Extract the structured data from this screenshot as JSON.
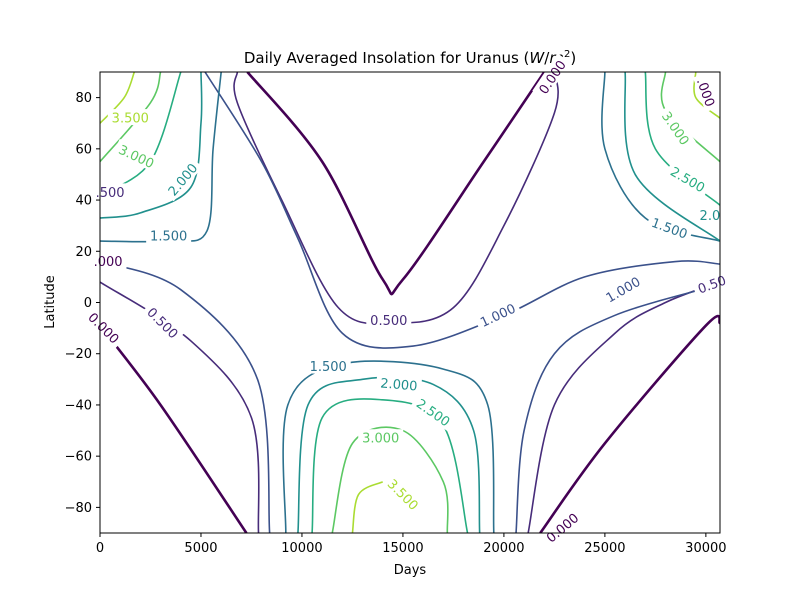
{
  "chart_data": {
    "type": "contour",
    "title": "Daily Averaged Insolation for Uranus (W/m²)",
    "title_parts": {
      "prefix": "Daily Averaged Insolation for Uranus (",
      "var": "W",
      "slash": "/",
      "var2": "m",
      "sup": "2",
      "suffix": ")"
    },
    "xlabel": "Days",
    "ylabel": "Latitude",
    "xlim": [
      0,
      30700
    ],
    "ylim": [
      -90,
      90
    ],
    "xticks": [
      0,
      5000,
      10000,
      15000,
      20000,
      25000,
      30000
    ],
    "yticks": [
      -80,
      -60,
      -40,
      -20,
      0,
      20,
      40,
      60,
      80
    ],
    "grid": false,
    "colors": {
      "0.000": "#440154",
      "0.500": "#472c7a",
      "1.000": "#3b518b",
      "1.500": "#2c718e",
      "2.000": "#21908d",
      "2.500": "#27ad81",
      "3.000": "#5cc863",
      "3.500": "#aadc32"
    },
    "contours": [
      {
        "level": "0.000",
        "points": [
          [
            7300,
            90
          ],
          [
            11000,
            55
          ],
          [
            14000,
            9
          ],
          [
            15000,
            9
          ],
          [
            19000,
            55
          ],
          [
            22000,
            90
          ]
        ]
      },
      {
        "level": "0.000",
        "points": [
          [
            0,
            -9
          ],
          [
            3000,
            -40
          ],
          [
            7250,
            -90
          ]
        ]
      },
      {
        "level": "0.000",
        "points": [
          [
            21800,
            -90
          ],
          [
            25000,
            -55
          ],
          [
            30000,
            -9
          ],
          [
            30700,
            -8
          ]
        ]
      },
      {
        "level": "0.500",
        "points": [
          [
            6800,
            90
          ],
          [
            6800,
            78
          ],
          [
            9000,
            40
          ],
          [
            11800,
            -2
          ],
          [
            14500,
            -8
          ],
          [
            17500,
            -2
          ],
          [
            20000,
            30
          ],
          [
            22500,
            74
          ],
          [
            22500,
            90
          ]
        ]
      },
      {
        "level": "0.500",
        "points": [
          [
            0,
            8
          ],
          [
            4500,
            -15
          ],
          [
            7500,
            -45
          ],
          [
            7850,
            -90
          ]
        ]
      },
      {
        "level": "0.500",
        "points": [
          [
            21200,
            -90
          ],
          [
            22500,
            -40
          ],
          [
            25500,
            -12
          ],
          [
            28000,
            0
          ],
          [
            30700,
            8
          ]
        ]
      },
      {
        "level": "1.000",
        "points": [
          [
            5200,
            90
          ],
          [
            8000,
            55
          ],
          [
            9800,
            25
          ],
          [
            12000,
            -12
          ],
          [
            15500,
            -17
          ],
          [
            20000,
            -5
          ],
          [
            24000,
            10
          ],
          [
            28500,
            16
          ],
          [
            30700,
            15
          ]
        ]
      },
      {
        "level": "1.000",
        "points": [
          [
            0,
            16
          ],
          [
            4000,
            5
          ],
          [
            7800,
            -30
          ],
          [
            8400,
            -90
          ]
        ]
      },
      {
        "level": "1.000",
        "points": [
          [
            20600,
            -90
          ],
          [
            21000,
            -50
          ],
          [
            22500,
            -20
          ],
          [
            25500,
            -5
          ],
          [
            30700,
            7
          ]
        ]
      },
      {
        "level": "1.500",
        "points": [
          [
            0,
            24
          ],
          [
            3500,
            24
          ],
          [
            5300,
            28
          ],
          [
            5600,
            60
          ],
          [
            6000,
            90
          ]
        ]
      },
      {
        "level": "1.500",
        "points": [
          [
            25000,
            90
          ],
          [
            25000,
            60
          ],
          [
            27000,
            33
          ],
          [
            30700,
            24
          ]
        ]
      },
      {
        "level": "1.500",
        "points": [
          [
            9200,
            -90
          ],
          [
            9300,
            -40
          ],
          [
            12000,
            -24
          ],
          [
            17000,
            -26
          ],
          [
            19200,
            -40
          ],
          [
            19500,
            -90
          ]
        ]
      },
      {
        "level": "2.000",
        "points": [
          [
            0,
            33
          ],
          [
            2000,
            35
          ],
          [
            4500,
            45
          ],
          [
            5000,
            70
          ],
          [
            5000,
            90
          ]
        ]
      },
      {
        "level": "2.000",
        "points": [
          [
            26000,
            90
          ],
          [
            26500,
            50
          ],
          [
            30700,
            24
          ]
        ]
      },
      {
        "level": "2.000",
        "points": [
          [
            9800,
            -90
          ],
          [
            10300,
            -40
          ],
          [
            13000,
            -30
          ],
          [
            16500,
            -32
          ],
          [
            18500,
            -50
          ],
          [
            18800,
            -90
          ]
        ]
      },
      {
        "level": "2.500",
        "points": [
          [
            0,
            42
          ],
          [
            2500,
            55
          ],
          [
            4000,
            90
          ]
        ]
      },
      {
        "level": "2.500",
        "points": [
          [
            27000,
            90
          ],
          [
            27500,
            60
          ],
          [
            30700,
            38
          ]
        ]
      },
      {
        "level": "2.500",
        "points": [
          [
            10500,
            -90
          ],
          [
            11000,
            -45
          ],
          [
            14000,
            -38
          ],
          [
            17000,
            -48
          ],
          [
            18200,
            -90
          ]
        ]
      },
      {
        "level": "3.000",
        "points": [
          [
            0,
            55
          ],
          [
            2500,
            78
          ],
          [
            3000,
            90
          ]
        ]
      },
      {
        "level": "3.000",
        "points": [
          [
            28000,
            90
          ],
          [
            28000,
            75
          ],
          [
            30700,
            55
          ]
        ]
      },
      {
        "level": "3.000",
        "points": [
          [
            11500,
            -90
          ],
          [
            12500,
            -55
          ],
          [
            15000,
            -50
          ],
          [
            17000,
            -70
          ],
          [
            17200,
            -90
          ]
        ]
      },
      {
        "level": "3.500",
        "points": [
          [
            0,
            70
          ],
          [
            1200,
            80
          ],
          [
            1700,
            90
          ]
        ]
      },
      {
        "level": "3.500",
        "points": [
          [
            29500,
            90
          ],
          [
            29500,
            80
          ],
          [
            30700,
            72
          ]
        ]
      },
      {
        "level": "3.500",
        "points": [
          [
            12500,
            -90
          ],
          [
            12800,
            -75
          ],
          [
            14000,
            -70
          ]
        ]
      }
    ],
    "contour_labels": [
      {
        "text": "0.000",
        "x": 22400,
        "y": 88,
        "rot": -56
      },
      {
        "text": "0.000",
        "x": 180,
        "y": -10,
        "rot": 45
      },
      {
        "text": "0.000",
        "x": 22900,
        "y": -88,
        "rot": -40
      },
      {
        "text": ".000",
        "x": 30000,
        "y": 82,
        "rot": 70
      },
      {
        "text": "3.500",
        "x": 1500,
        "y": 72,
        "rot": 0
      },
      {
        "text": "3.000",
        "x": 1800,
        "y": 57,
        "rot": 25
      },
      {
        "text": ".500",
        "x": 500,
        "y": 43,
        "rot": 0
      },
      {
        "text": "2.000",
        "x": 4100,
        "y": 48,
        "rot": -50
      },
      {
        "text": "1.500",
        "x": 3400,
        "y": 26,
        "rot": 0
      },
      {
        "text": ".000",
        "x": 400,
        "y": 16,
        "rot": 0
      },
      {
        "text": "0.500",
        "x": 3100,
        "y": -8,
        "rot": 45
      },
      {
        "text": "0.500",
        "x": 14300,
        "y": -7,
        "rot": 0
      },
      {
        "text": "1.000",
        "x": 19700,
        "y": -5,
        "rot": -25
      },
      {
        "text": "1.000",
        "x": 25900,
        "y": 5,
        "rot": -30
      },
      {
        "text": "0.50",
        "x": 30300,
        "y": 7,
        "rot": -20
      },
      {
        "text": "3.000",
        "x": 28500,
        "y": 68,
        "rot": 55
      },
      {
        "text": "2.500",
        "x": 29100,
        "y": 48,
        "rot": 30
      },
      {
        "text": "2.0",
        "x": 30200,
        "y": 34,
        "rot": 0
      },
      {
        "text": "1.500",
        "x": 28200,
        "y": 29,
        "rot": 20
      },
      {
        "text": "1.500",
        "x": 11300,
        "y": -25,
        "rot": 0
      },
      {
        "text": "2.000",
        "x": 14800,
        "y": -32,
        "rot": 5
      },
      {
        "text": "2.500",
        "x": 16500,
        "y": -43,
        "rot": 35
      },
      {
        "text": "3.000",
        "x": 13900,
        "y": -53,
        "rot": 0
      },
      {
        "text": "3.500",
        "x": 15000,
        "y": -75,
        "rot": 45
      }
    ]
  }
}
